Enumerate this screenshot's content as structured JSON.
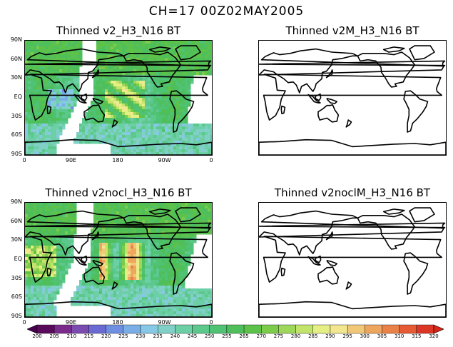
{
  "title": "CH=17    00Z02MAY2005",
  "panels": [
    {
      "id": "p1",
      "title": "Thinned v2_H3_N16 BT",
      "has_data": true,
      "variant": "a"
    },
    {
      "id": "p2",
      "title": "Thinned v2M_H3_N16 BT",
      "has_data": false
    },
    {
      "id": "p3",
      "title": "Thinned v2nocl_H3_N16 BT",
      "has_data": true,
      "variant": "b"
    },
    {
      "id": "p4",
      "title": "Thinned v2noclM_H3_N16 BT",
      "has_data": false
    }
  ],
  "lat_labels": [
    "90N",
    "60N",
    "30N",
    "EQ",
    "30S",
    "60S",
    "90S"
  ],
  "lon_labels": [
    "0",
    "90E",
    "180",
    "90W",
    "0"
  ],
  "colorbar": {
    "levels": [
      "200",
      "205",
      "210",
      "215",
      "220",
      "225",
      "230",
      "235",
      "240",
      "245",
      "250",
      "255",
      "265",
      "270",
      "275",
      "280",
      "285",
      "290",
      "295",
      "300",
      "305",
      "310",
      "315",
      "320"
    ],
    "colors": [
      "#5a0a5a",
      "#7a2a8a",
      "#7a4cb0",
      "#6a6ad2",
      "#6f8fe0",
      "#7aaee6",
      "#86c8e6",
      "#80d0c8",
      "#6ccfa6",
      "#5cc88c",
      "#4fc274",
      "#4fbf5c",
      "#5cc24a",
      "#7ccc4c",
      "#9ed85a",
      "#c3e46a",
      "#e6ee86",
      "#f2e690",
      "#f0c878",
      "#eea65e",
      "#ea8248",
      "#e65a34",
      "#dc3626"
    ],
    "under_color": "#4a0050",
    "over_color": "#d8261a"
  }
}
